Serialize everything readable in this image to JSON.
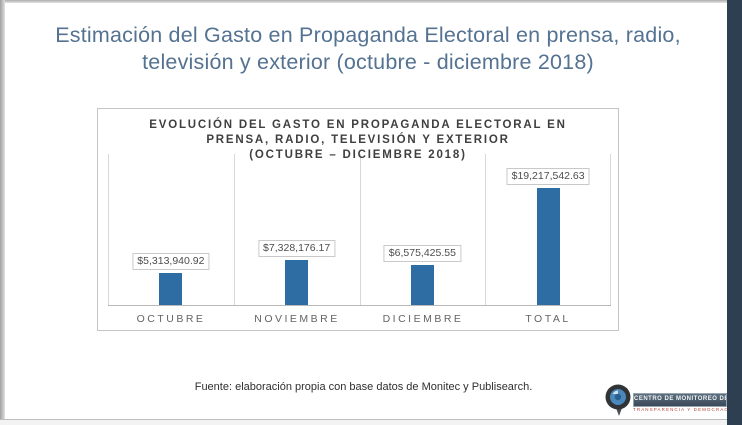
{
  "slide": {
    "title_line1": "Estimación del Gasto en Propaganda Electoral en prensa, radio,",
    "title_line2": "televisión y exterior (octubre - diciembre 2018)",
    "footer": "Fuente: elaboración propia con base datos de Monitec y Publisearch.",
    "title_color": "#547291",
    "accent_bar_color": "#2d3f51"
  },
  "chart_data": {
    "type": "bar",
    "title": "EVOLUCIÓN DEL GASTO EN PROPAGANDA ELECTORAL EN PRENSA, RADIO, TELEVISIÓN Y EXTERIOR (OCTUBRE – DICIEMBRE 2018)",
    "title_lines": [
      "EVOLUCIÓN DEL GASTO EN PROPAGANDA ELECTORAL EN",
      "PRENSA, RADIO, TELEVISIÓN Y EXTERIOR",
      "(OCTUBRE – DICIEMBRE 2018)"
    ],
    "categories": [
      "OCTUBRE",
      "NOVIEMBRE",
      "DICIEMBRE",
      "TOTAL"
    ],
    "values": [
      5313940.92,
      7328176.17,
      6575425.55,
      19217542.63
    ],
    "data_labels": [
      "$5,313,940.92",
      "$7,328,176.17",
      "$6,575,425.55",
      "$19,217,542.63"
    ],
    "bar_color": "#2e6da4",
    "xlabel": "",
    "ylabel": "",
    "ylim": [
      0,
      19217542.63
    ],
    "grid": "vertical category dividers, no y-axis ticks",
    "legend": "none"
  },
  "logo": {
    "line1": "CENTRO DE MONITOREO DE",
    "line2": "TRANSPARENCIA Y DEMOCRACIA"
  }
}
